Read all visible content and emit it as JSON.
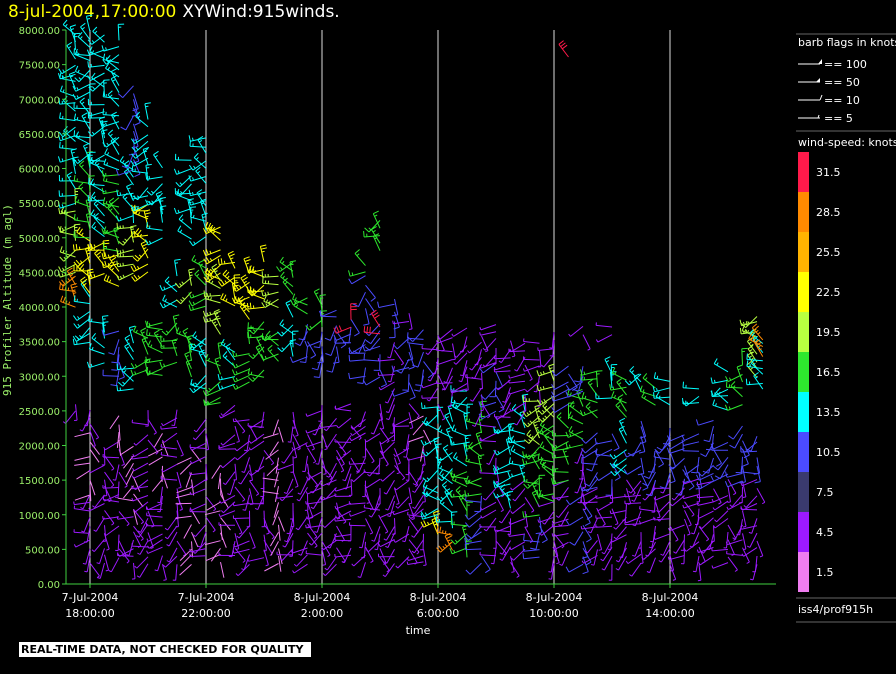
{
  "header": {
    "date": "8-jul-2004,17:00:00",
    "name": "XYWind:915winds."
  },
  "footer": {
    "notice": "REAL-TIME DATA, NOT CHECKED FOR QUALITY"
  },
  "legend": {
    "barb_title": "barb flags in knots",
    "barb_entries": [
      "== 100",
      "== 50",
      "== 10",
      "== 5"
    ],
    "speed_title": "wind-speed: knots",
    "station": "iss4/prof915h"
  },
  "colors": {
    "background": "#000000",
    "axis": "#3fd13f",
    "ytick_label": "#9cf06a",
    "vertical_grid": "#ffffff"
  },
  "chart_data": {
    "type": "scatter",
    "title": "XYWind:915winds.",
    "xlabel": "time",
    "ylabel": "915 Profiler Altitude (m agl)",
    "ylim": [
      0,
      8000
    ],
    "yticks": [
      "0.00",
      "500.00",
      "1000.00",
      "1500.00",
      "2000.00",
      "2500.00",
      "3000.00",
      "3500.00",
      "4000.00",
      "4500.00",
      "5000.00",
      "5500.00",
      "6000.00",
      "6500.00",
      "7000.00",
      "7500.00",
      "8000.00"
    ],
    "xlim": [
      "7-Jul-2004 17:00:00",
      "8-Jul-2004 17:30:00"
    ],
    "xticks": [
      {
        "date": "7-Jul-2004",
        "time": "18:00:00"
      },
      {
        "date": "7-Jul-2004",
        "time": "22:00:00"
      },
      {
        "date": "8-Jul-2004",
        "time": "2:00:00"
      },
      {
        "date": "8-Jul-2004",
        "time": "6:00:00"
      },
      {
        "date": "8-Jul-2004",
        "time": "10:00:00"
      },
      {
        "date": "8-Jul-2004",
        "time": "14:00:00"
      }
    ],
    "speed_scale": [
      {
        "label": "31.5",
        "color": "#ff1a4a"
      },
      {
        "label": "28.5",
        "color": "#ff8a00"
      },
      {
        "label": "25.5",
        "color": "#ffb300"
      },
      {
        "label": "22.5",
        "color": "#ffff00"
      },
      {
        "label": "19.5",
        "color": "#b8ff40"
      },
      {
        "label": "16.5",
        "color": "#2ee82e"
      },
      {
        "label": "13.5",
        "color": "#00ffff"
      },
      {
        "label": "10.5",
        "color": "#4b4bff"
      },
      {
        "label": "7.5",
        "color": "#3a3a6e"
      },
      {
        "label": "4.5",
        "color": "#9d1aff"
      },
      {
        "label": "1.5",
        "color": "#f07df0"
      }
    ],
    "barb_profiles": [
      {
        "hour": 0.0,
        "bands": [
          [
            300,
            1800,
            4.5
          ],
          [
            2500,
            2900,
            7.5
          ]
        ]
      },
      {
        "hour": 0.5,
        "bands": [
          [
            2500,
            2700,
            4.5
          ],
          [
            4000,
            4500,
            28.5
          ],
          [
            4500,
            5500,
            19.5
          ],
          [
            5500,
            8000,
            13.5
          ]
        ]
      },
      {
        "hour": 1.0,
        "bands": [
          [
            300,
            1300,
            4.5
          ],
          [
            1300,
            2200,
            1.5
          ],
          [
            2200,
            2600,
            4.5
          ],
          [
            3500,
            4200,
            13.5
          ],
          [
            4200,
            5000,
            22.5
          ],
          [
            5000,
            6000,
            16.5
          ],
          [
            6000,
            8000,
            13.5
          ]
        ]
      },
      {
        "hour": 1.5,
        "bands": [
          [
            300,
            2000,
            4.5
          ],
          [
            3200,
            3800,
            13.5
          ],
          [
            4500,
            5000,
            22.5
          ],
          [
            5000,
            6500,
            13.5
          ],
          [
            6500,
            8000,
            13.5
          ]
        ]
      },
      {
        "hour": 2.0,
        "bands": [
          [
            400,
            2100,
            4.5
          ],
          [
            2100,
            2500,
            1.5
          ],
          [
            3000,
            3700,
            10.5
          ],
          [
            4300,
            4800,
            22.5
          ],
          [
            4800,
            6000,
            16.5
          ],
          [
            6000,
            7900,
            13.5
          ]
        ]
      },
      {
        "hour": 2.5,
        "bands": [
          [
            300,
            1100,
            4.5
          ],
          [
            1100,
            2000,
            1.5
          ],
          [
            2800,
            3500,
            13.5
          ],
          [
            4500,
            5200,
            19.5
          ],
          [
            5200,
            6000,
            13.5
          ],
          [
            6000,
            7300,
            10.5
          ]
        ]
      },
      {
        "hour": 3.0,
        "bands": [
          [
            300,
            2600,
            4.5
          ],
          [
            3000,
            3600,
            16.5
          ],
          [
            4500,
            5500,
            22.5
          ],
          [
            5500,
            6800,
            13.5
          ]
        ]
      },
      {
        "hour": 3.5,
        "bands": [
          [
            300,
            1500,
            4.5
          ],
          [
            1500,
            2200,
            1.5
          ],
          [
            3000,
            3800,
            16.5
          ],
          [
            5000,
            6000,
            13.5
          ]
        ]
      },
      {
        "hour": 4.0,
        "bands": [
          [
            300,
            2600,
            4.5
          ],
          [
            3200,
            3800,
            16.5
          ],
          [
            4000,
            4500,
            13.5
          ]
        ]
      },
      {
        "hour": 4.5,
        "bands": [
          [
            300,
            2000,
            1.5
          ],
          [
            3000,
            3600,
            16.5
          ],
          [
            4200,
            4500,
            19.5
          ],
          [
            5000,
            6200,
            13.5
          ]
        ]
      },
      {
        "hour": 5.0,
        "bands": [
          [
            400,
            2400,
            4.5
          ],
          [
            2800,
            3600,
            13.5
          ],
          [
            4000,
            4600,
            16.5
          ],
          [
            5000,
            6500,
            13.5
          ]
        ]
      },
      {
        "hour": 5.5,
        "bands": [
          [
            300,
            1800,
            1.5
          ],
          [
            2600,
            3300,
            16.5
          ],
          [
            3600,
            4400,
            19.5
          ],
          [
            4400,
            5200,
            22.5
          ]
        ]
      },
      {
        "hour": 6.0,
        "bands": [
          [
            400,
            2600,
            4.5
          ],
          [
            2900,
            3400,
            13.5
          ],
          [
            4000,
            4700,
            22.5
          ]
        ]
      },
      {
        "hour": 6.5,
        "bands": [
          [
            300,
            2400,
            4.5
          ],
          [
            2900,
            3500,
            16.5
          ],
          [
            3800,
            4500,
            22.5
          ]
        ]
      },
      {
        "hour": 7.0,
        "bands": [
          [
            400,
            2500,
            4.5
          ],
          [
            3000,
            3800,
            16.5
          ],
          [
            4000,
            4700,
            22.5
          ]
        ]
      },
      {
        "hour": 7.5,
        "bands": [
          [
            300,
            2400,
            1.5
          ],
          [
            3200,
            3700,
            16.5
          ],
          [
            4000,
            4500,
            19.5
          ]
        ]
      },
      {
        "hour": 8.0,
        "bands": [
          [
            400,
            2500,
            4.5
          ],
          [
            3300,
            3900,
            13.5
          ],
          [
            4200,
            4700,
            16.5
          ]
        ]
      },
      {
        "hour": 8.5,
        "bands": [
          [
            300,
            2200,
            4.5
          ],
          [
            3300,
            3800,
            10.5
          ],
          [
            3900,
            4200,
            16.5
          ]
        ]
      },
      {
        "hour": 9.0,
        "bands": [
          [
            400,
            2600,
            4.5
          ],
          [
            3200,
            3700,
            10.5
          ],
          [
            3700,
            4100,
            16.5
          ]
        ]
      },
      {
        "hour": 9.5,
        "bands": [
          [
            300,
            2400,
            4.5
          ],
          [
            3300,
            4000,
            10.5
          ]
        ]
      },
      {
        "hour": 10.0,
        "bands": [
          [
            400,
            2600,
            4.5
          ],
          [
            3500,
            3900,
            10.5
          ],
          [
            3700,
            3900,
            31.5
          ]
        ]
      },
      {
        "hour": 10.5,
        "bands": [
          [
            300,
            2500,
            4.5
          ],
          [
            3000,
            3600,
            10.5
          ],
          [
            4000,
            4500,
            10.5
          ],
          [
            4500,
            4700,
            16.5
          ]
        ]
      },
      {
        "hour": 11.0,
        "bands": [
          [
            400,
            2600,
            4.5
          ],
          [
            3000,
            3800,
            10.5
          ],
          [
            3600,
            3800,
            31.5
          ],
          [
            4800,
            5300,
            16.5
          ]
        ]
      },
      {
        "hour": 11.5,
        "bands": [
          [
            300,
            2400,
            4.5
          ],
          [
            2600,
            3500,
            4.5
          ],
          [
            3800,
            4200,
            10.5
          ]
        ]
      },
      {
        "hour": 12.0,
        "bands": [
          [
            400,
            2600,
            4.5
          ],
          [
            2800,
            3600,
            10.5
          ],
          [
            3800,
            4000,
            4.5
          ]
        ]
      },
      {
        "hour": 12.5,
        "bands": [
          [
            300,
            2000,
            4.5
          ],
          [
            2000,
            2500,
            1.5
          ],
          [
            3000,
            3700,
            10.5
          ]
        ]
      },
      {
        "hour": 13.0,
        "bands": [
          [
            700,
            1000,
            22.5
          ],
          [
            1000,
            2600,
            13.5
          ],
          [
            2600,
            3600,
            4.5
          ]
        ]
      },
      {
        "hour": 13.5,
        "bands": [
          [
            500,
            800,
            28.5
          ],
          [
            800,
            2400,
            13.5
          ],
          [
            2800,
            3700,
            4.5
          ]
        ]
      },
      {
        "hour": 14.0,
        "bands": [
          [
            400,
            1700,
            16.5
          ],
          [
            1700,
            2800,
            13.5
          ],
          [
            2800,
            3700,
            4.5
          ]
        ]
      },
      {
        "hour": 14.5,
        "bands": [
          [
            300,
            1300,
            10.5
          ],
          [
            1300,
            2500,
            16.5
          ],
          [
            2500,
            3700,
            4.5
          ]
        ]
      },
      {
        "hour": 15.0,
        "bands": [
          [
            400,
            2300,
            4.5
          ],
          [
            2400,
            3200,
            10.5
          ],
          [
            3200,
            3800,
            4.5
          ]
        ]
      },
      {
        "hour": 15.5,
        "bands": [
          [
            300,
            1100,
            4.5
          ],
          [
            1100,
            2400,
            13.5
          ],
          [
            2400,
            3500,
            4.5
          ]
        ]
      },
      {
        "hour": 16.0,
        "bands": [
          [
            500,
            1500,
            4.5
          ],
          [
            1500,
            2500,
            13.5
          ],
          [
            2500,
            3500,
            4.5
          ]
        ]
      },
      {
        "hour": 16.5,
        "bands": [
          [
            400,
            1000,
            10.5
          ],
          [
            1000,
            2000,
            16.5
          ],
          [
            2000,
            2700,
            19.5
          ],
          [
            2800,
            3500,
            4.5
          ]
        ]
      },
      {
        "hour": 17.0,
        "bands": [
          [
            300,
            1200,
            4.5
          ],
          [
            1200,
            2400,
            16.5
          ],
          [
            2400,
            3100,
            19.5
          ],
          [
            3300,
            3700,
            4.5
          ]
        ]
      },
      {
        "hour": 17.5,
        "bands": [
          [
            500,
            1500,
            4.5
          ],
          [
            1500,
            2400,
            16.5
          ],
          [
            2600,
            3200,
            10.5
          ],
          [
            7600,
            7700,
            31.5
          ]
        ]
      },
      {
        "hour": 18.0,
        "bands": [
          [
            300,
            1300,
            10.5
          ],
          [
            1300,
            2000,
            4.5
          ],
          [
            2000,
            2700,
            16.5
          ],
          [
            2800,
            3200,
            10.5
          ],
          [
            3600,
            3800,
            4.5
          ]
        ]
      },
      {
        "hour": 18.5,
        "bands": [
          [
            400,
            1400,
            4.5
          ],
          [
            1400,
            2200,
            10.5
          ],
          [
            2400,
            3100,
            16.5
          ]
        ]
      },
      {
        "hour": 19.0,
        "bands": [
          [
            300,
            1500,
            4.5
          ],
          [
            1500,
            2200,
            10.5
          ],
          [
            2700,
            3100,
            13.5
          ],
          [
            3600,
            3800,
            4.5
          ]
        ]
      },
      {
        "hour": 19.5,
        "bands": [
          [
            400,
            1600,
            4.5
          ],
          [
            1600,
            2200,
            13.5
          ],
          [
            2400,
            3000,
            16.5
          ]
        ]
      },
      {
        "hour": 20.0,
        "bands": [
          [
            300,
            1600,
            4.5
          ],
          [
            1600,
            2400,
            10.5
          ],
          [
            2800,
            3100,
            13.5
          ]
        ]
      },
      {
        "hour": 20.5,
        "bands": [
          [
            400,
            1500,
            4.5
          ],
          [
            1500,
            2000,
            10.5
          ],
          [
            2600,
            2900,
            16.5
          ]
        ]
      },
      {
        "hour": 21.0,
        "bands": [
          [
            300,
            1600,
            4.5
          ],
          [
            1600,
            2300,
            10.5
          ],
          [
            2600,
            3000,
            13.5
          ]
        ]
      },
      {
        "hour": 21.5,
        "bands": [
          [
            400,
            1500,
            4.5
          ],
          [
            1500,
            2200,
            10.5
          ]
        ]
      },
      {
        "hour": 22.0,
        "bands": [
          [
            300,
            1600,
            4.5
          ],
          [
            1600,
            2200,
            10.5
          ],
          [
            2600,
            2900,
            13.5
          ]
        ]
      },
      {
        "hour": 22.5,
        "bands": [
          [
            400,
            1500,
            4.5
          ],
          [
            1500,
            2400,
            10.5
          ]
        ]
      },
      {
        "hour": 23.0,
        "bands": [
          [
            300,
            1600,
            4.5
          ],
          [
            1600,
            2100,
            10.5
          ],
          [
            2500,
            3100,
            13.5
          ]
        ]
      },
      {
        "hour": 23.5,
        "bands": [
          [
            400,
            1500,
            4.5
          ],
          [
            1500,
            2300,
            10.5
          ],
          [
            2600,
            3200,
            16.5
          ]
        ]
      },
      {
        "hour": 24.0,
        "bands": [
          [
            300,
            1600,
            4.5
          ],
          [
            1600,
            2200,
            10.5
          ],
          [
            3000,
            3900,
            19.5
          ]
        ]
      },
      {
        "hour": 24.2,
        "bands": [
          [
            2800,
            3500,
            13.5
          ],
          [
            3300,
            3600,
            28.5
          ]
        ]
      }
    ]
  }
}
